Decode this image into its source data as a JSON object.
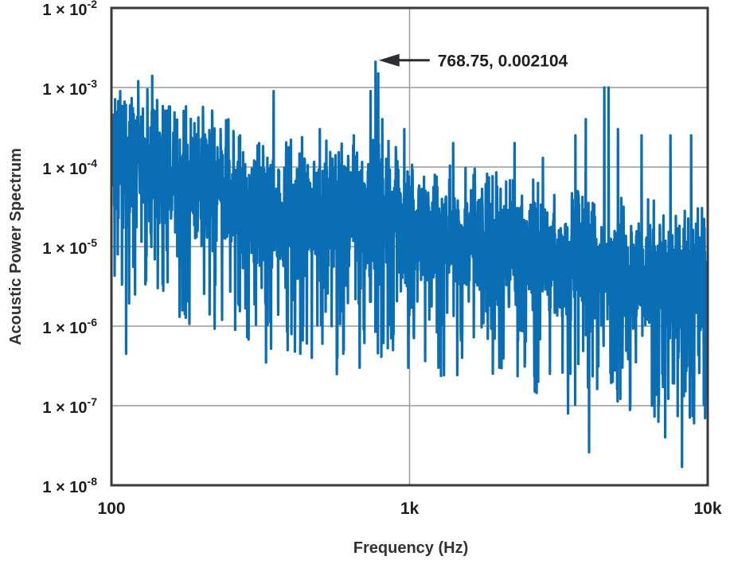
{
  "chart_data": {
    "type": "line",
    "x_scale": "log",
    "y_scale": "log",
    "xlabel": "Frequency (Hz)",
    "ylabel": "Acoustic Power Spectrum",
    "xlim": [
      100,
      10000
    ],
    "ylim": [
      1e-08,
      0.01
    ],
    "grid": true,
    "x_ticks": [
      {
        "value": 100,
        "label": "100"
      },
      {
        "value": 1000,
        "label": "1k"
      },
      {
        "value": 10000,
        "label": "10k"
      }
    ],
    "y_ticks": [
      {
        "value": 0.01,
        "base": "1 × 10",
        "exp": "-2"
      },
      {
        "value": 0.001,
        "base": "1 × 10",
        "exp": "-3"
      },
      {
        "value": 0.0001,
        "base": "1 × 10",
        "exp": "-4"
      },
      {
        "value": 1e-05,
        "base": "1 × 10",
        "exp": "-5"
      },
      {
        "value": 1e-06,
        "base": "1 × 10",
        "exp": "-6"
      },
      {
        "value": 1e-07,
        "base": "1 × 10",
        "exp": "-7"
      },
      {
        "value": 1e-08,
        "base": "1 × 10",
        "exp": "-8"
      }
    ],
    "annotation": {
      "text": "768.75, 0.002104",
      "x": 768.75,
      "y": 0.002104
    },
    "series": [
      {
        "name": "Acoustic Power Spectrum",
        "color": "#0a6eb4",
        "trend": [
          [
            100,
            0.00011
          ],
          [
            130,
            9e-05
          ],
          [
            200,
            6e-05
          ],
          [
            300,
            3e-05
          ],
          [
            500,
            2.1e-05
          ],
          [
            700,
            3e-05
          ],
          [
            1000,
            1.7e-05
          ],
          [
            2000,
            9e-06
          ],
          [
            3000,
            7e-06
          ],
          [
            5000,
            4.5e-06
          ],
          [
            10000,
            3e-06
          ]
        ],
        "peaks": [
          [
            107,
            0.0009
          ],
          [
            118,
            0.00055
          ],
          [
            123,
            0.0012
          ],
          [
            132,
            0.00095
          ],
          [
            137,
            0.0014
          ],
          [
            150,
            0.0004
          ],
          [
            175,
            0.0002
          ],
          [
            207,
            0.0002
          ],
          [
            235,
            0.0011
          ],
          [
            270,
            0.00025
          ],
          [
            350,
            0.0009
          ],
          [
            400,
            0.00022
          ],
          [
            500,
            0.0003
          ],
          [
            650,
            0.00025
          ],
          [
            740,
            0.0009
          ],
          [
            768.75,
            0.002104
          ],
          [
            785,
            0.0015
          ],
          [
            810,
            0.0004
          ],
          [
            960,
            0.0003
          ],
          [
            1400,
            0.0002
          ],
          [
            2250,
            0.0002
          ],
          [
            2800,
            0.00013
          ],
          [
            3600,
            0.00025
          ],
          [
            3900,
            0.0004
          ],
          [
            4500,
            0.001
          ],
          [
            4650,
            0.001
          ],
          [
            4800,
            0.0009
          ],
          [
            5000,
            0.0003
          ],
          [
            6000,
            0.00025
          ],
          [
            7500,
            0.00025
          ],
          [
            8200,
            0.00035
          ],
          [
            8800,
            0.00025
          ]
        ],
        "troughs": [
          [
            105,
            8e-06
          ],
          [
            112,
            4.5e-07
          ],
          [
            120,
            2.5e-06
          ],
          [
            143,
            3e-06
          ],
          [
            235,
            1.2e-06
          ],
          [
            260,
            9e-07
          ],
          [
            330,
            3.5e-07
          ],
          [
            390,
            5e-07
          ],
          [
            430,
            4.5e-07
          ],
          [
            470,
            4e-07
          ],
          [
            510,
            6e-07
          ],
          [
            570,
            2.5e-07
          ],
          [
            680,
            3e-07
          ],
          [
            880,
            5e-07
          ],
          [
            990,
            3e-07
          ],
          [
            1250,
            3e-07
          ],
          [
            1500,
            4e-07
          ],
          [
            2000,
            3e-07
          ],
          [
            2700,
            2e-07
          ],
          [
            3400,
            8e-08
          ],
          [
            4000,
            2.6e-08
          ],
          [
            4800,
            2e-07
          ],
          [
            5500,
            1e-07
          ],
          [
            6500,
            1e-07
          ],
          [
            7200,
            4e-08
          ],
          [
            8200,
            1.7e-08
          ],
          [
            9000,
            6e-08
          ],
          [
            9800,
            7e-08
          ]
        ]
      }
    ]
  }
}
